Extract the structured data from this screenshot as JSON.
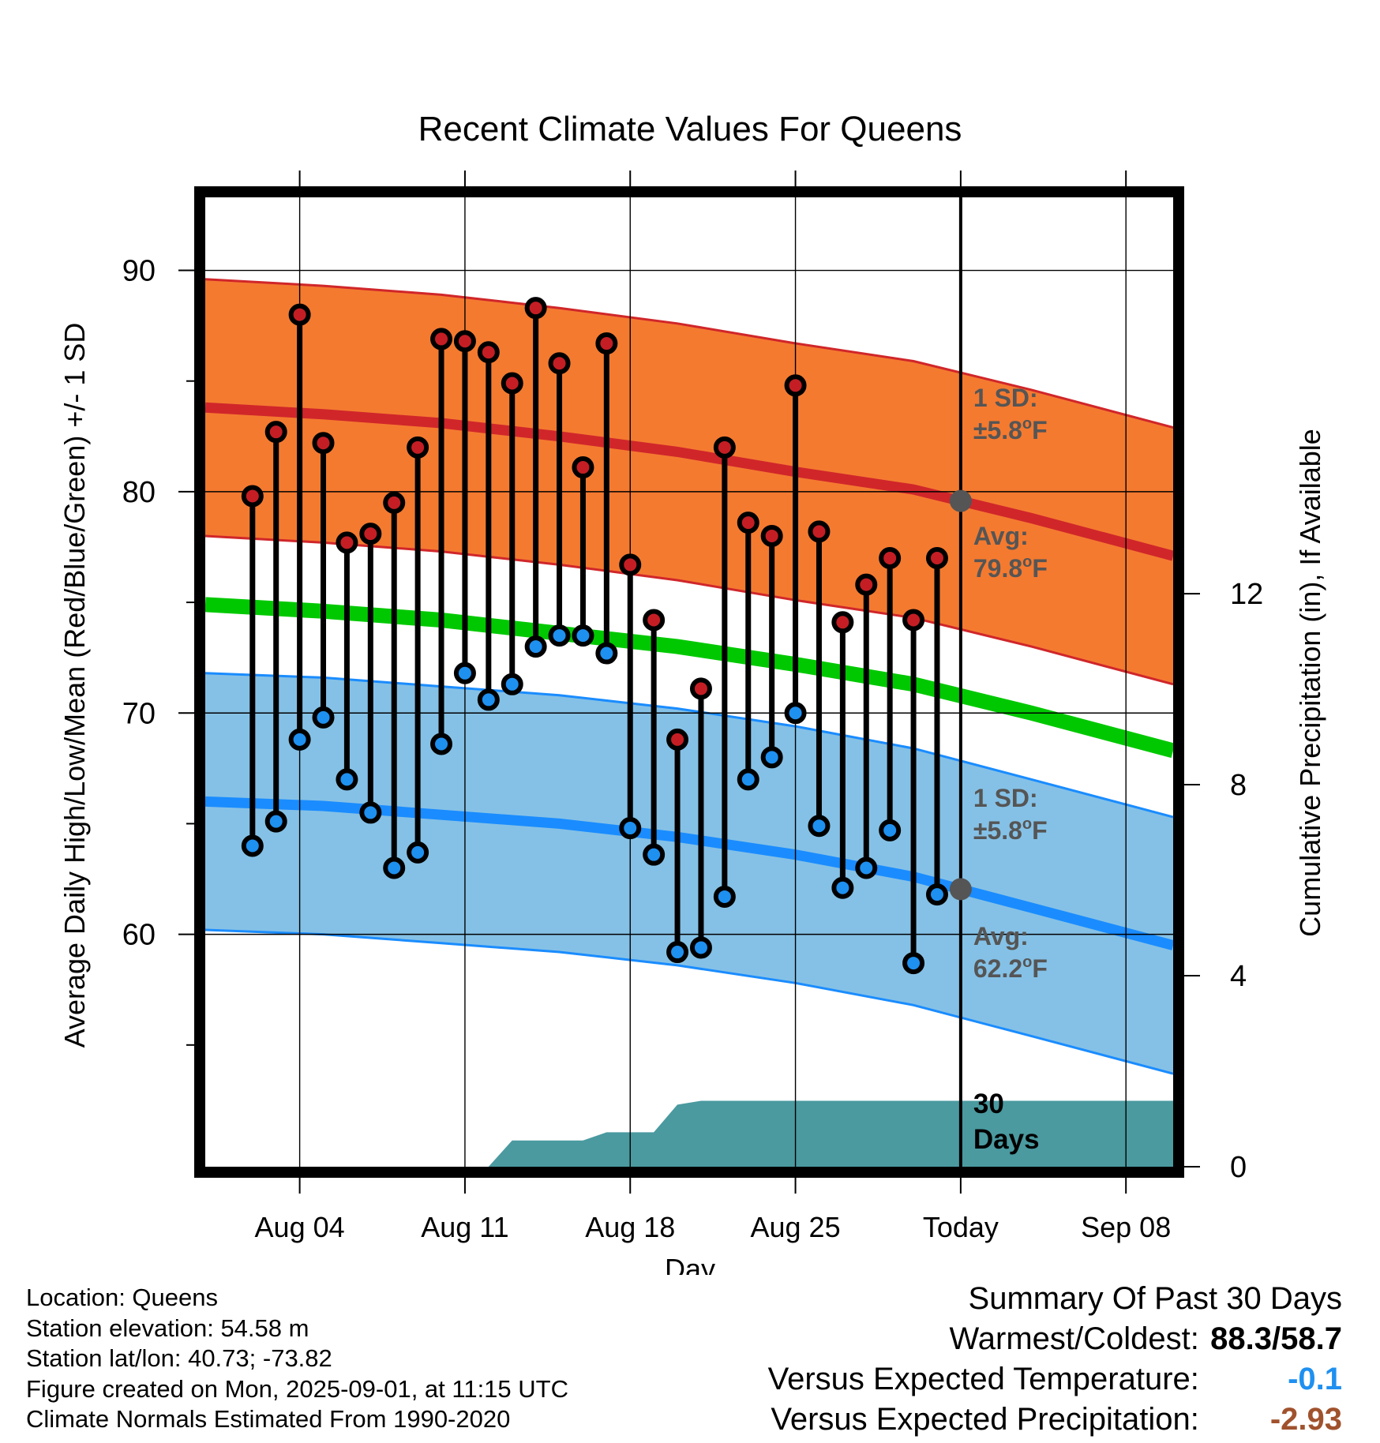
{
  "chart_data": {
    "type": "line",
    "title": "Recent Climate Values For Queens",
    "xlabel": "Day",
    "ylabel": "Average Daily High/Low/Mean (Red/Blue/Green) +/- 1 SD",
    "y2label": "Cumulative Precipitation (in), If Available",
    "xlim": [
      "2025-07-31",
      "2025-09-10"
    ],
    "ylim": [
      49.5,
      93.3
    ],
    "y2lim": [
      0,
      20.3
    ],
    "x_ticks": [
      "Aug 04",
      "Aug 11",
      "Aug 18",
      "Aug 25",
      "Today",
      "Sep 08"
    ],
    "x_tick_dates": [
      "2025-08-04",
      "2025-08-11",
      "2025-08-18",
      "2025-08-25",
      "2025-09-01",
      "2025-09-08"
    ],
    "y_ticks": [
      "60",
      "70",
      "80",
      "90"
    ],
    "y_tick_values": [
      60,
      70,
      80,
      90
    ],
    "y2_ticks": [
      "0",
      "4",
      "8",
      "12"
    ],
    "y2_tick_values": [
      0,
      4,
      8,
      12
    ],
    "grid": true,
    "today": "2025-09-01",
    "colors": {
      "high_band": "#f47a30",
      "high_line": "#d0262a",
      "low_band": "#85c1e6",
      "low_line": "#1a8cff",
      "mean_line": "#00c800",
      "precip": "#4a9aa0",
      "high_dot": "#c41e24",
      "low_dot": "#1e90f0",
      "label": "#555555"
    },
    "normals": {
      "dates": [
        "2025-07-31",
        "2025-08-05",
        "2025-08-10",
        "2025-08-15",
        "2025-08-20",
        "2025-08-25",
        "2025-08-30",
        "2025-09-04",
        "2025-09-10"
      ],
      "high_avg": [
        83.8,
        83.5,
        83.1,
        82.5,
        81.8,
        80.9,
        80.1,
        78.8,
        77.1
      ],
      "high_sd": 5.8,
      "low_avg": [
        66.0,
        65.8,
        65.4,
        65.0,
        64.4,
        63.6,
        62.6,
        61.2,
        59.5
      ],
      "low_sd": 5.8,
      "mean_avg": [
        74.9,
        74.6,
        74.2,
        73.6,
        73.0,
        72.2,
        71.3,
        70.0,
        68.3
      ]
    },
    "series": [
      {
        "name": "High",
        "dates": [
          "2025-08-02",
          "2025-08-03",
          "2025-08-04",
          "2025-08-05",
          "2025-08-06",
          "2025-08-07",
          "2025-08-08",
          "2025-08-09",
          "2025-08-10",
          "2025-08-11",
          "2025-08-12",
          "2025-08-13",
          "2025-08-14",
          "2025-08-15",
          "2025-08-16",
          "2025-08-17",
          "2025-08-18",
          "2025-08-19",
          "2025-08-20",
          "2025-08-21",
          "2025-08-22",
          "2025-08-23",
          "2025-08-24",
          "2025-08-25",
          "2025-08-26",
          "2025-08-27",
          "2025-08-28",
          "2025-08-29",
          "2025-08-30",
          "2025-08-31"
        ],
        "values": [
          79.8,
          82.7,
          88.0,
          82.2,
          77.7,
          78.1,
          79.5,
          82.0,
          86.9,
          86.8,
          86.3,
          84.9,
          88.3,
          85.8,
          81.1,
          86.7,
          76.7,
          74.2,
          68.8,
          71.1,
          82.0,
          78.6,
          78.0,
          84.8,
          78.2,
          74.1,
          75.8,
          77.0,
          74.2,
          77.0
        ]
      },
      {
        "name": "Low",
        "dates": [
          "2025-08-02",
          "2025-08-03",
          "2025-08-04",
          "2025-08-05",
          "2025-08-06",
          "2025-08-07",
          "2025-08-08",
          "2025-08-09",
          "2025-08-10",
          "2025-08-11",
          "2025-08-12",
          "2025-08-13",
          "2025-08-14",
          "2025-08-15",
          "2025-08-16",
          "2025-08-17",
          "2025-08-18",
          "2025-08-19",
          "2025-08-20",
          "2025-08-21",
          "2025-08-22",
          "2025-08-23",
          "2025-08-24",
          "2025-08-25",
          "2025-08-26",
          "2025-08-27",
          "2025-08-28",
          "2025-08-29",
          "2025-08-30",
          "2025-08-31"
        ],
        "values": [
          64.0,
          65.1,
          68.8,
          69.8,
          67.0,
          65.5,
          63.0,
          63.7,
          68.6,
          71.8,
          70.6,
          71.3,
          73.0,
          73.5,
          73.5,
          72.7,
          64.8,
          63.6,
          59.2,
          59.4,
          61.7,
          67.0,
          68.0,
          70.0,
          64.9,
          62.1,
          63.0,
          64.7,
          58.7,
          61.8
        ]
      },
      {
        "name": "Cumulative Precipitation",
        "dates": [
          "2025-07-31",
          "2025-08-11",
          "2025-08-12",
          "2025-08-13",
          "2025-08-16",
          "2025-08-17",
          "2025-08-19",
          "2025-08-20",
          "2025-08-21",
          "2025-09-10"
        ],
        "values": [
          0,
          0,
          0,
          0.55,
          0.55,
          0.72,
          0.72,
          1.3,
          1.38,
          1.38
        ]
      }
    ],
    "annotations": {
      "high_sd_line1": "1 SD:",
      "high_sd_line2": "±5.8",
      "high_avg_line1": "Avg:",
      "high_avg_line2": "79.8",
      "low_sd_line1": "1 SD:",
      "low_sd_line2": "±5.8",
      "low_avg_line1": "Avg:",
      "low_avg_line2": "62.2",
      "degree": "o",
      "unit": "F",
      "days_line1": "30",
      "days_line2": "Days"
    }
  },
  "footer": {
    "location": "Location: Queens",
    "elevation": "Station elevation: 54.58 m",
    "latlon": "Station lat/lon: 40.73; -73.82",
    "created": "Figure created on Mon, 2025-09-01, at 11:15 UTC",
    "normals": "Climate Normals Estimated From 1990-2020"
  },
  "summary": {
    "title": "Summary Of Past 30 Days",
    "warm_cold_label": "Warmest/Coldest:",
    "warm_cold_value": "88.3/58.7",
    "temp_label": "Versus Expected Temperature:",
    "temp_value": "-0.1",
    "temp_color": "#1e90f0",
    "precip_label": "Versus Expected Precipitation:",
    "precip_value": "-2.93",
    "precip_color": "#a0522d"
  }
}
